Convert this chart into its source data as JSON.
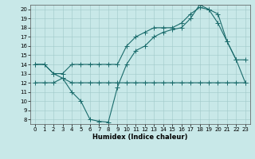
{
  "xlabel": "Humidex (Indice chaleur)",
  "background_color": "#c8e8e8",
  "line_color": "#1a6b6b",
  "xlim": [
    -0.5,
    23.5
  ],
  "ylim": [
    7.5,
    20.5
  ],
  "xticks": [
    0,
    1,
    2,
    3,
    4,
    5,
    6,
    7,
    8,
    9,
    10,
    11,
    12,
    13,
    14,
    15,
    16,
    17,
    18,
    19,
    20,
    21,
    22,
    23
  ],
  "yticks": [
    8,
    9,
    10,
    11,
    12,
    13,
    14,
    15,
    16,
    17,
    18,
    19,
    20
  ],
  "series1_x": [
    0,
    1,
    2,
    3,
    4,
    5,
    6,
    7,
    8,
    9,
    10,
    11,
    12,
    13,
    14,
    15,
    16,
    17,
    18,
    19,
    20,
    21,
    22,
    23
  ],
  "series1_y": [
    14.0,
    14.0,
    13.0,
    13.0,
    14.0,
    14.0,
    14.0,
    14.0,
    14.0,
    14.0,
    16.0,
    17.0,
    17.5,
    18.0,
    18.0,
    18.0,
    18.5,
    19.5,
    20.2,
    20.0,
    19.5,
    16.5,
    14.5,
    14.5
  ],
  "series2_x": [
    0,
    1,
    2,
    3,
    4,
    5,
    6,
    7,
    8,
    9,
    10,
    11,
    12,
    13,
    14,
    15,
    16,
    17,
    18,
    19,
    20,
    21,
    22,
    23
  ],
  "series2_y": [
    14.0,
    14.0,
    13.0,
    12.5,
    11.0,
    10.0,
    8.0,
    7.8,
    7.7,
    11.5,
    14.0,
    15.5,
    16.0,
    17.0,
    17.5,
    17.8,
    18.0,
    19.0,
    20.5,
    20.0,
    18.5,
    16.5,
    14.5,
    12.0
  ],
  "series3_x": [
    0,
    1,
    2,
    3,
    4,
    5,
    6,
    7,
    8,
    9,
    10,
    11,
    12,
    13,
    14,
    15,
    16,
    17,
    18,
    19,
    20,
    21,
    22,
    23
  ],
  "series3_y": [
    12.0,
    12.0,
    12.0,
    12.5,
    12.0,
    12.0,
    12.0,
    12.0,
    12.0,
    12.0,
    12.0,
    12.0,
    12.0,
    12.0,
    12.0,
    12.0,
    12.0,
    12.0,
    12.0,
    12.0,
    12.0,
    12.0,
    12.0,
    12.0
  ],
  "xlabel_fontsize": 6,
  "tick_fontsize": 5,
  "markersize": 2.0,
  "linewidth": 0.8
}
